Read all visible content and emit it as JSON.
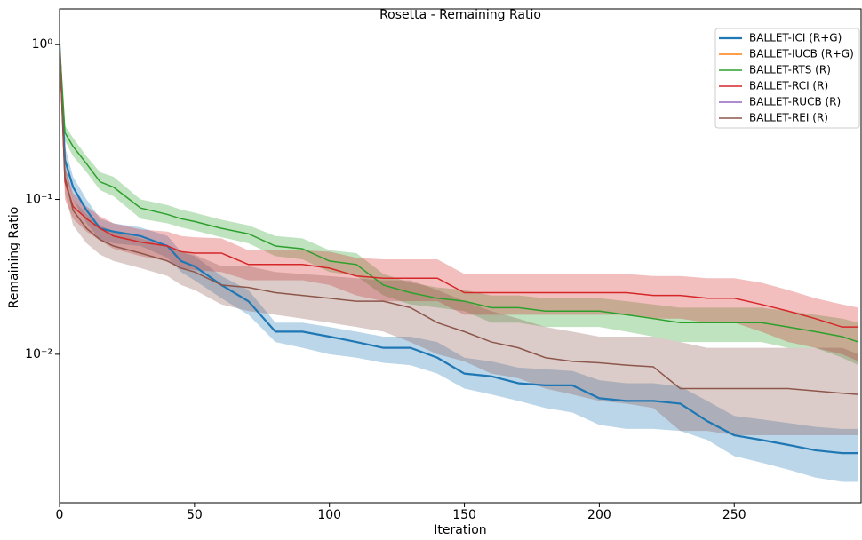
{
  "chart_data": {
    "type": "line",
    "title": "Rosetta - Remaining Ratio",
    "x_label": "Iteration",
    "y_label": "Remaining Ratio",
    "log_y": true,
    "legend": "upper right",
    "xlim": [
      0,
      297
    ],
    "xticks": [
      0,
      50,
      100,
      150,
      200,
      250
    ],
    "ylim": [
      0.0011,
      1.7
    ],
    "yticks": [
      {
        "value": 1,
        "label": "10⁰"
      },
      {
        "value": 0.1,
        "label": "10⁻¹"
      },
      {
        "value": 0.01,
        "label": "10⁻²"
      }
    ],
    "x": [
      0,
      2,
      5,
      10,
      15,
      20,
      30,
      40,
      45,
      50,
      60,
      70,
      80,
      90,
      100,
      110,
      120,
      130,
      140,
      150,
      160,
      170,
      180,
      190,
      200,
      210,
      220,
      230,
      240,
      250,
      260,
      270,
      280,
      290,
      296
    ],
    "series": [
      {
        "name": "BALLET-ICI (R+G)",
        "color": "#1f77b4",
        "values": [
          1.0,
          0.18,
          0.12,
          0.085,
          0.065,
          0.062,
          0.058,
          0.05,
          0.04,
          0.037,
          0.028,
          0.022,
          0.014,
          0.014,
          0.013,
          0.012,
          0.011,
          0.011,
          0.0095,
          0.0075,
          0.0072,
          0.0065,
          0.0063,
          0.0063,
          0.0052,
          0.005,
          0.005,
          0.0048,
          0.0037,
          0.003,
          0.0028,
          0.0026,
          0.0024,
          0.0023,
          0.0023
        ],
        "lower": [
          0.9,
          0.15,
          0.1,
          0.07,
          0.055,
          0.052,
          0.05,
          0.042,
          0.034,
          0.03,
          0.023,
          0.018,
          0.012,
          0.011,
          0.01,
          0.0095,
          0.0088,
          0.0085,
          0.0075,
          0.006,
          0.0055,
          0.005,
          0.0045,
          0.0042,
          0.0035,
          0.0033,
          0.0033,
          0.0032,
          0.0028,
          0.0022,
          0.002,
          0.0018,
          0.0016,
          0.0015,
          0.0015
        ],
        "upper": [
          1.1,
          0.22,
          0.14,
          0.1,
          0.075,
          0.07,
          0.066,
          0.058,
          0.046,
          0.043,
          0.032,
          0.026,
          0.016,
          0.016,
          0.015,
          0.014,
          0.013,
          0.013,
          0.012,
          0.0095,
          0.009,
          0.0082,
          0.008,
          0.0078,
          0.0068,
          0.0065,
          0.0065,
          0.0062,
          0.005,
          0.004,
          0.0038,
          0.0036,
          0.0034,
          0.0033,
          0.0033
        ]
      },
      {
        "name": "BALLET-IUCB (R+G)",
        "color": "#ff7f0e",
        "values": [
          null,
          null,
          null,
          null,
          null,
          null,
          null,
          null,
          null,
          null,
          null,
          null,
          null,
          null,
          null,
          null,
          null,
          null,
          null,
          null,
          null,
          null,
          null,
          null,
          null,
          null,
          null,
          null,
          null,
          null,
          null,
          null,
          null,
          null,
          null
        ]
      },
      {
        "name": "BALLET-RTS (R)",
        "color": "#2ca02c",
        "values": [
          1.0,
          0.27,
          0.22,
          0.17,
          0.13,
          0.12,
          0.088,
          0.08,
          0.075,
          0.072,
          0.065,
          0.06,
          0.05,
          0.048,
          0.04,
          0.038,
          0.028,
          0.025,
          0.023,
          0.022,
          0.02,
          0.02,
          0.019,
          0.019,
          0.019,
          0.018,
          0.017,
          0.016,
          0.016,
          0.016,
          0.016,
          0.015,
          0.014,
          0.013,
          0.012
        ],
        "lower": [
          0.9,
          0.24,
          0.19,
          0.15,
          0.115,
          0.105,
          0.075,
          0.07,
          0.066,
          0.063,
          0.057,
          0.052,
          0.043,
          0.041,
          0.034,
          0.032,
          0.024,
          0.021,
          0.02,
          0.019,
          0.016,
          0.016,
          0.015,
          0.015,
          0.015,
          0.014,
          0.013,
          0.012,
          0.012,
          0.012,
          0.012,
          0.011,
          0.011,
          0.0095,
          0.0085
        ],
        "upper": [
          1.1,
          0.3,
          0.25,
          0.19,
          0.15,
          0.14,
          0.1,
          0.092,
          0.086,
          0.082,
          0.074,
          0.068,
          0.058,
          0.056,
          0.047,
          0.045,
          0.033,
          0.029,
          0.027,
          0.026,
          0.024,
          0.024,
          0.023,
          0.023,
          0.023,
          0.022,
          0.021,
          0.02,
          0.02,
          0.02,
          0.02,
          0.019,
          0.018,
          0.017,
          0.016
        ]
      },
      {
        "name": "BALLET-RCI (R)",
        "color": "#d62728",
        "values": [
          1.0,
          0.13,
          0.09,
          0.075,
          0.065,
          0.058,
          0.053,
          0.05,
          0.046,
          0.045,
          0.045,
          0.038,
          0.038,
          0.038,
          0.036,
          0.032,
          0.031,
          0.031,
          0.031,
          0.025,
          0.025,
          0.025,
          0.025,
          0.025,
          0.025,
          0.025,
          0.024,
          0.024,
          0.023,
          0.023,
          0.021,
          0.019,
          0.017,
          0.015,
          0.015
        ],
        "lower": [
          0.9,
          0.1,
          0.075,
          0.062,
          0.054,
          0.048,
          0.043,
          0.04,
          0.036,
          0.035,
          0.034,
          0.03,
          0.03,
          0.03,
          0.028,
          0.024,
          0.022,
          0.022,
          0.022,
          0.018,
          0.018,
          0.018,
          0.018,
          0.018,
          0.018,
          0.018,
          0.017,
          0.017,
          0.016,
          0.016,
          0.014,
          0.012,
          0.011,
          0.01,
          0.009
        ],
        "upper": [
          1.1,
          0.16,
          0.11,
          0.09,
          0.078,
          0.07,
          0.064,
          0.062,
          0.058,
          0.057,
          0.056,
          0.047,
          0.047,
          0.047,
          0.046,
          0.042,
          0.041,
          0.041,
          0.041,
          0.033,
          0.033,
          0.033,
          0.033,
          0.033,
          0.033,
          0.033,
          0.032,
          0.032,
          0.031,
          0.031,
          0.029,
          0.026,
          0.023,
          0.021,
          0.02
        ]
      },
      {
        "name": "BALLET-RUCB (R)",
        "color": "#9467bd",
        "values": [
          null,
          null,
          null,
          null,
          null,
          null,
          null,
          null,
          null,
          null,
          null,
          null,
          null,
          null,
          null,
          null,
          null,
          null,
          null,
          null,
          null,
          null,
          null,
          null,
          null,
          null,
          null,
          null,
          null,
          null,
          null,
          null,
          null,
          null,
          null
        ]
      },
      {
        "name": "BALLET-REI (R)",
        "color": "#8c564b",
        "values": [
          1.0,
          0.14,
          0.085,
          0.065,
          0.055,
          0.05,
          0.045,
          0.04,
          0.036,
          0.034,
          0.028,
          0.027,
          0.025,
          0.024,
          0.023,
          0.022,
          0.022,
          0.02,
          0.016,
          0.014,
          0.012,
          0.011,
          0.0095,
          0.009,
          0.0088,
          0.0085,
          0.0083,
          0.006,
          0.006,
          0.006,
          0.006,
          0.006,
          0.0058,
          0.0056,
          0.0055
        ],
        "lower": [
          0.9,
          0.11,
          0.068,
          0.052,
          0.044,
          0.04,
          0.036,
          0.032,
          0.028,
          0.026,
          0.021,
          0.019,
          0.018,
          0.017,
          0.016,
          0.015,
          0.014,
          0.012,
          0.01,
          0.009,
          0.0075,
          0.007,
          0.006,
          0.0055,
          0.005,
          0.0048,
          0.0045,
          0.0032,
          0.0032,
          0.003,
          0.003,
          0.003,
          0.003,
          0.003,
          0.003
        ],
        "upper": [
          1.1,
          0.17,
          0.1,
          0.08,
          0.068,
          0.062,
          0.056,
          0.05,
          0.046,
          0.044,
          0.037,
          0.037,
          0.034,
          0.033,
          0.032,
          0.031,
          0.03,
          0.03,
          0.026,
          0.022,
          0.019,
          0.017,
          0.015,
          0.014,
          0.013,
          0.013,
          0.013,
          0.012,
          0.011,
          0.011,
          0.011,
          0.011,
          0.011,
          0.011,
          0.01
        ]
      }
    ]
  }
}
